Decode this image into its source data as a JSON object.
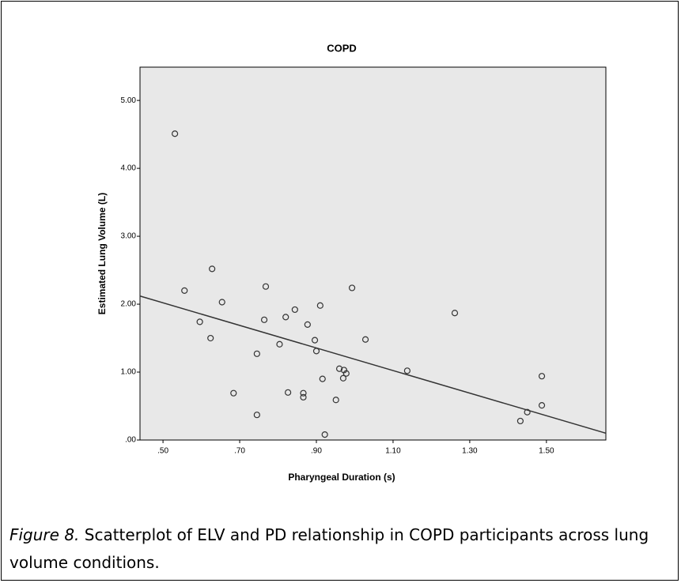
{
  "chart_data": {
    "type": "scatter",
    "title": "COPD",
    "x_label": "Pharyngeal Duration (s)",
    "y_label": "Estimated Lung Volume (L)",
    "color": "#333333",
    "background": "#e8e8e8",
    "x": [
      0.531,
      0.628,
      0.556,
      0.654,
      0.596,
      0.624,
      0.684,
      0.768,
      0.764,
      0.745,
      0.745,
      0.804,
      0.82,
      0.826,
      0.844,
      0.866,
      0.866,
      0.877,
      0.896,
      0.9,
      0.91,
      0.916,
      0.922,
      0.951,
      0.96,
      0.972,
      0.97,
      0.978,
      0.993,
      1.028,
      1.137,
      1.261,
      1.432,
      1.45,
      1.488,
      1.488
    ],
    "values": [
      4.51,
      2.52,
      2.2,
      2.03,
      1.74,
      1.5,
      0.69,
      2.26,
      1.77,
      1.27,
      0.37,
      1.41,
      1.81,
      0.7,
      1.92,
      0.69,
      0.63,
      1.7,
      1.47,
      1.31,
      1.98,
      0.9,
      0.08,
      0.59,
      1.05,
      1.03,
      0.91,
      0.98,
      2.24,
      1.48,
      1.02,
      1.87,
      0.28,
      0.41,
      0.94,
      0.51
    ],
    "fit_line": {
      "x": [
        0.44,
        1.655
      ],
      "y": [
        2.12,
        0.1
      ]
    },
    "xlim": [
      0.44,
      1.655
    ],
    "ylim": [
      0,
      5.49
    ],
    "xticks": [
      {
        "value": 0.5,
        "label": ".50"
      },
      {
        "value": 0.7,
        "label": ".70"
      },
      {
        "value": 0.9,
        "label": ".90"
      },
      {
        "value": 1.1,
        "label": "1.10"
      },
      {
        "value": 1.3,
        "label": "1.30"
      },
      {
        "value": 1.5,
        "label": "1.50"
      }
    ],
    "yticks": [
      {
        "value": 0,
        "label": ".00"
      },
      {
        "value": 1,
        "label": "1.00"
      },
      {
        "value": 2,
        "label": "2.00"
      },
      {
        "value": 3,
        "label": "3.00"
      },
      {
        "value": 4,
        "label": "4.00"
      },
      {
        "value": 5,
        "label": "5.00"
      }
    ]
  },
  "caption": {
    "label": "Figure 8.",
    "text": " Scatterplot of ELV and PD relationship in COPD participants across lung volume conditions."
  }
}
